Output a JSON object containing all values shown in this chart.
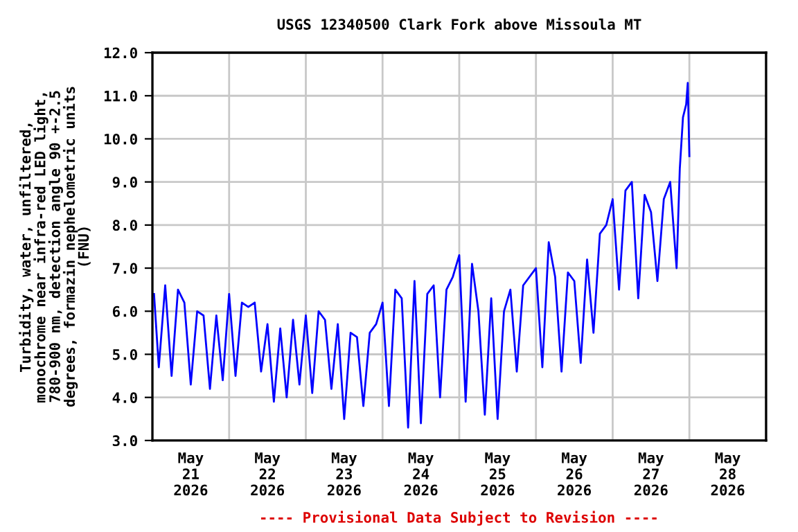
{
  "chart_data": {
    "type": "line",
    "title": "USGS 12340500 Clark Fork above Missoula MT",
    "ylabel": "Turbidity, water, unfiltered,\nmonochrome near infra-red LED light,\n780-900 nm, detection angle 90 +-2.5\ndegrees, formazin nephelometric units\n(FNU)",
    "annotations": [
      "---- Provisional Data Subject to Revision ----"
    ],
    "x": [
      "2026-05-21T00:30",
      "2026-05-21T02:00",
      "2026-05-21T04:00",
      "2026-05-21T06:00",
      "2026-05-21T08:00",
      "2026-05-21T10:00",
      "2026-05-21T12:00",
      "2026-05-21T14:00",
      "2026-05-21T16:00",
      "2026-05-21T18:00",
      "2026-05-21T20:00",
      "2026-05-21T22:00",
      "2026-05-22T00:00",
      "2026-05-22T02:00",
      "2026-05-22T04:00",
      "2026-05-22T06:00",
      "2026-05-22T08:00",
      "2026-05-22T10:00",
      "2026-05-22T12:00",
      "2026-05-22T14:00",
      "2026-05-22T16:00",
      "2026-05-22T18:00",
      "2026-05-22T20:00",
      "2026-05-22T22:00",
      "2026-05-23T00:00",
      "2026-05-23T02:00",
      "2026-05-23T04:00",
      "2026-05-23T06:00",
      "2026-05-23T08:00",
      "2026-05-23T10:00",
      "2026-05-23T12:00",
      "2026-05-23T14:00",
      "2026-05-23T16:00",
      "2026-05-23T18:00",
      "2026-05-23T20:00",
      "2026-05-23T22:00",
      "2026-05-24T00:00",
      "2026-05-24T02:00",
      "2026-05-24T04:00",
      "2026-05-24T06:00",
      "2026-05-24T08:00",
      "2026-05-24T10:00",
      "2026-05-24T12:00",
      "2026-05-24T14:00",
      "2026-05-24T16:00",
      "2026-05-24T18:00",
      "2026-05-24T20:00",
      "2026-05-24T22:00",
      "2026-05-25T00:00",
      "2026-05-25T02:00",
      "2026-05-25T04:00",
      "2026-05-25T06:00",
      "2026-05-25T08:00",
      "2026-05-25T10:00",
      "2026-05-25T12:00",
      "2026-05-25T14:00",
      "2026-05-25T16:00",
      "2026-05-25T18:00",
      "2026-05-25T20:00",
      "2026-05-25T22:00",
      "2026-05-26T00:00",
      "2026-05-26T02:00",
      "2026-05-26T04:00",
      "2026-05-26T06:00",
      "2026-05-26T08:00",
      "2026-05-26T10:00",
      "2026-05-26T12:00",
      "2026-05-26T14:00",
      "2026-05-26T16:00",
      "2026-05-26T18:00",
      "2026-05-26T20:00",
      "2026-05-26T22:00",
      "2026-05-27T00:00",
      "2026-05-27T02:00",
      "2026-05-27T04:00",
      "2026-05-27T06:00",
      "2026-05-27T08:00",
      "2026-05-27T10:00",
      "2026-05-27T12:00",
      "2026-05-27T14:00",
      "2026-05-27T16:00",
      "2026-05-27T18:00",
      "2026-05-27T20:00",
      "2026-05-27T21:00",
      "2026-05-27T22:00",
      "2026-05-27T23:00",
      "2026-05-27T23:30",
      "2026-05-28T00:00"
    ],
    "series": [
      {
        "color": "#0000ff",
        "values": [
          6.4,
          4.7,
          6.6,
          4.5,
          6.5,
          6.2,
          4.3,
          6.0,
          5.9,
          4.2,
          5.9,
          4.4,
          6.4,
          4.5,
          6.2,
          6.1,
          6.2,
          4.6,
          5.7,
          3.9,
          5.6,
          4.0,
          5.8,
          4.3,
          5.9,
          4.1,
          6.0,
          5.8,
          4.2,
          5.7,
          3.5,
          5.5,
          5.4,
          3.8,
          5.5,
          5.7,
          6.2,
          3.8,
          6.5,
          6.3,
          3.3,
          6.7,
          3.4,
          6.4,
          6.6,
          4.0,
          6.5,
          6.8,
          7.3,
          3.9,
          7.1,
          6.0,
          3.6,
          6.3,
          3.5,
          6.0,
          6.5,
          4.6,
          6.6,
          6.8,
          7.0,
          4.7,
          7.6,
          6.8,
          4.6,
          6.9,
          6.7,
          4.8,
          7.2,
          5.5,
          7.8,
          8.0,
          8.6,
          6.5,
          8.8,
          9.0,
          6.3,
          8.7,
          8.3,
          6.7,
          8.6,
          9.0,
          7.0,
          9.3,
          10.5,
          10.8,
          11.3,
          9.6
        ]
      }
    ],
    "xlim": [
      "2026-05-21T00:00",
      "2026-05-29T00:00"
    ],
    "xticks": [
      {
        "value": "2026-05-21T12:00",
        "label": "May\n21\n2026"
      },
      {
        "value": "2026-05-22T12:00",
        "label": "May\n22\n2026"
      },
      {
        "value": "2026-05-23T12:00",
        "label": "May\n23\n2026"
      },
      {
        "value": "2026-05-24T12:00",
        "label": "May\n24\n2026"
      },
      {
        "value": "2026-05-25T12:00",
        "label": "May\n25\n2026"
      },
      {
        "value": "2026-05-26T12:00",
        "label": "May\n26\n2026"
      },
      {
        "value": "2026-05-27T12:00",
        "label": "May\n27\n2026"
      },
      {
        "value": "2026-05-28T12:00",
        "label": "May\n28\n2026"
      },
      {
        "value": "2026-05-22T00:00",
        "label": null
      },
      {
        "value": "2026-05-23T00:00",
        "label": null
      },
      {
        "value": "2026-05-24T00:00",
        "label": null
      },
      {
        "value": "2026-05-25T00:00",
        "label": null
      },
      {
        "value": "2026-05-26T00:00",
        "label": null
      },
      {
        "value": "2026-05-27T00:00",
        "label": null
      },
      {
        "value": "2026-05-28T00:00",
        "label": null
      }
    ],
    "ylim": [
      3.0,
      12.0
    ],
    "yticks": [
      {
        "value": 3,
        "label": "3.0"
      },
      {
        "value": 4,
        "label": "4.0"
      },
      {
        "value": 5,
        "label": "5.0"
      },
      {
        "value": 6,
        "label": "6.0"
      },
      {
        "value": 7,
        "label": "7.0"
      },
      {
        "value": 8,
        "label": "8.0"
      },
      {
        "value": 9,
        "label": "9.0"
      },
      {
        "value": 10,
        "label": "10.0"
      },
      {
        "value": 11,
        "label": "11.0"
      },
      {
        "value": 12,
        "label": "12.0"
      }
    ],
    "grid": true,
    "legend": false,
    "marker": "none",
    "line_style": "solid"
  }
}
